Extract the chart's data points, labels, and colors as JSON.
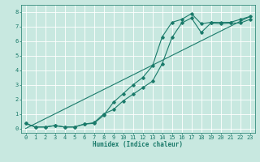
{
  "xlabel": "Humidex (Indice chaleur)",
  "ylabel": "",
  "xlim": [
    -0.5,
    23.5
  ],
  "ylim": [
    -0.3,
    8.5
  ],
  "xticks": [
    0,
    1,
    2,
    3,
    4,
    5,
    6,
    7,
    8,
    9,
    10,
    11,
    12,
    13,
    14,
    15,
    16,
    17,
    18,
    19,
    20,
    21,
    22,
    23
  ],
  "yticks": [
    0,
    1,
    2,
    3,
    4,
    5,
    6,
    7,
    8
  ],
  "background_color": "#c8e8e0",
  "grid_color": "#ffffff",
  "line_color": "#1a7a6a",
  "line1_x": [
    0,
    1,
    2,
    3,
    4,
    5,
    6,
    7,
    8,
    9,
    10,
    11,
    12,
    13,
    14,
    15,
    16,
    17,
    18,
    19,
    20,
    21,
    22,
    23
  ],
  "line1_y": [
    0.35,
    0.1,
    0.1,
    0.2,
    0.1,
    0.1,
    0.3,
    0.4,
    1.0,
    1.3,
    1.9,
    2.35,
    2.8,
    3.25,
    4.45,
    6.25,
    7.25,
    7.6,
    6.6,
    7.25,
    7.2,
    7.25,
    7.25,
    7.5
  ],
  "line2_x": [
    0,
    1,
    2,
    3,
    4,
    5,
    6,
    7,
    8,
    9,
    10,
    11,
    12,
    13,
    14,
    15,
    16,
    17,
    18,
    19,
    20,
    21,
    22,
    23
  ],
  "line2_y": [
    0.35,
    0.1,
    0.1,
    0.2,
    0.1,
    0.1,
    0.3,
    0.35,
    0.9,
    1.8,
    2.4,
    3.0,
    3.5,
    4.3,
    6.3,
    7.3,
    7.5,
    7.9,
    7.2,
    7.3,
    7.3,
    7.3,
    7.5,
    7.7
  ],
  "line3_x": [
    0,
    23
  ],
  "line3_y": [
    0.0,
    7.7
  ],
  "figwidth": 3.2,
  "figheight": 2.0,
  "dpi": 100,
  "lw": 0.8,
  "ms": 1.8,
  "tick_labelsize": 5.0,
  "xlabel_fontsize": 5.5
}
